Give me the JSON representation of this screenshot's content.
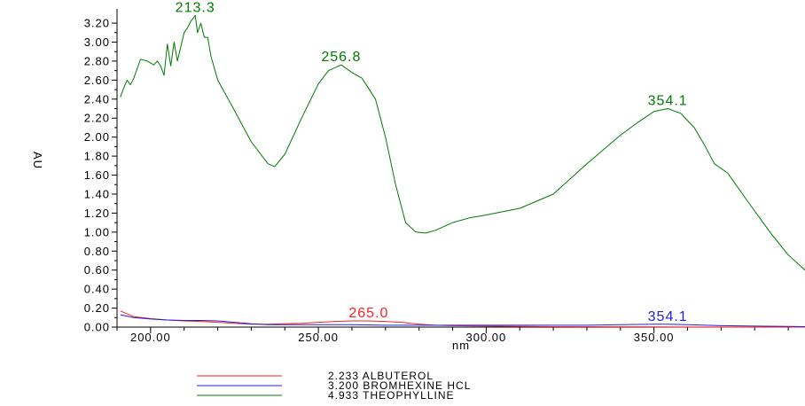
{
  "chart_data": {
    "type": "line",
    "xlabel": "nm",
    "ylabel": "AU",
    "xlim": [
      190,
      395
    ],
    "ylim": [
      0,
      3.35
    ],
    "x_ticks": [
      {
        "value": 200,
        "label": "200.00"
      },
      {
        "value": 250,
        "label": "250.00"
      },
      {
        "value": 300,
        "label": "300.00"
      },
      {
        "value": 350,
        "label": "350.00"
      }
    ],
    "y_ticks": [
      {
        "value": 0.0,
        "label": "0.00"
      },
      {
        "value": 0.2,
        "label": "0.20"
      },
      {
        "value": 0.4,
        "label": "0.40"
      },
      {
        "value": 0.6,
        "label": "0.60"
      },
      {
        "value": 0.8,
        "label": "0.80"
      },
      {
        "value": 1.0,
        "label": "1.00"
      },
      {
        "value": 1.2,
        "label": "1.20"
      },
      {
        "value": 1.4,
        "label": "1.40"
      },
      {
        "value": 1.6,
        "label": "1.60"
      },
      {
        "value": 1.8,
        "label": "1.80"
      },
      {
        "value": 2.0,
        "label": "2.00"
      },
      {
        "value": 2.2,
        "label": "2.20"
      },
      {
        "value": 2.4,
        "label": "2.40"
      },
      {
        "value": 2.6,
        "label": "2.60"
      },
      {
        "value": 2.8,
        "label": "2.80"
      },
      {
        "value": 3.0,
        "label": "3.00"
      },
      {
        "value": 3.2,
        "label": "3.20"
      }
    ],
    "series": [
      {
        "name": "2.233 ALBUTEROL",
        "color": "#ff2020",
        "points": [
          [
            191,
            0.17
          ],
          [
            195,
            0.11
          ],
          [
            200,
            0.09
          ],
          [
            205,
            0.075
          ],
          [
            210,
            0.065
          ],
          [
            215,
            0.06
          ],
          [
            220,
            0.05
          ],
          [
            225,
            0.04
          ],
          [
            230,
            0.03
          ],
          [
            235,
            0.03
          ],
          [
            240,
            0.035
          ],
          [
            245,
            0.04
          ],
          [
            250,
            0.05
          ],
          [
            255,
            0.06
          ],
          [
            260,
            0.065
          ],
          [
            265,
            0.065
          ],
          [
            270,
            0.06
          ],
          [
            275,
            0.05
          ],
          [
            280,
            0.03
          ],
          [
            285,
            0.02
          ],
          [
            290,
            0.015
          ],
          [
            300,
            0.01
          ],
          [
            320,
            0.005
          ],
          [
            350,
            0.002
          ],
          [
            395,
            0.0
          ]
        ]
      },
      {
        "name": "3.200 BROMHEXINE HCL",
        "color": "#2020e0",
        "points": [
          [
            191,
            0.13
          ],
          [
            195,
            0.1
          ],
          [
            200,
            0.085
          ],
          [
            205,
            0.075
          ],
          [
            210,
            0.07
          ],
          [
            215,
            0.07
          ],
          [
            220,
            0.065
          ],
          [
            225,
            0.05
          ],
          [
            230,
            0.035
          ],
          [
            235,
            0.025
          ],
          [
            240,
            0.025
          ],
          [
            250,
            0.025
          ],
          [
            260,
            0.025
          ],
          [
            270,
            0.02
          ],
          [
            280,
            0.02
          ],
          [
            290,
            0.02
          ],
          [
            300,
            0.02
          ],
          [
            310,
            0.02
          ],
          [
            320,
            0.02
          ],
          [
            330,
            0.02
          ],
          [
            340,
            0.025
          ],
          [
            350,
            0.03
          ],
          [
            354,
            0.03
          ],
          [
            360,
            0.025
          ],
          [
            370,
            0.015
          ],
          [
            380,
            0.01
          ],
          [
            395,
            0.005
          ]
        ]
      },
      {
        "name": "4.933 THEOPHYLLINE",
        "color": "#007a00",
        "points": [
          [
            191,
            2.42
          ],
          [
            192,
            2.52
          ],
          [
            193,
            2.6
          ],
          [
            194,
            2.55
          ],
          [
            195,
            2.62
          ],
          [
            196,
            2.72
          ],
          [
            197,
            2.82
          ],
          [
            199,
            2.8
          ],
          [
            201,
            2.76
          ],
          [
            202,
            2.8
          ],
          [
            203,
            2.75
          ],
          [
            204,
            2.65
          ],
          [
            205,
            2.98
          ],
          [
            206,
            2.75
          ],
          [
            207,
            3.0
          ],
          [
            208,
            2.8
          ],
          [
            209,
            2.95
          ],
          [
            210,
            3.1
          ],
          [
            211,
            3.15
          ],
          [
            212,
            3.22
          ],
          [
            213.3,
            3.28
          ],
          [
            214,
            3.1
          ],
          [
            215,
            3.2
          ],
          [
            216,
            3.05
          ],
          [
            217,
            3.05
          ],
          [
            218,
            2.85
          ],
          [
            220,
            2.6
          ],
          [
            225,
            2.28
          ],
          [
            230,
            1.95
          ],
          [
            235,
            1.72
          ],
          [
            237,
            1.69
          ],
          [
            240,
            1.82
          ],
          [
            245,
            2.2
          ],
          [
            250,
            2.56
          ],
          [
            253,
            2.7
          ],
          [
            256.8,
            2.76
          ],
          [
            260,
            2.68
          ],
          [
            263,
            2.62
          ],
          [
            267,
            2.4
          ],
          [
            270,
            2.0
          ],
          [
            273,
            1.5
          ],
          [
            276,
            1.1
          ],
          [
            279,
            1.0
          ],
          [
            282,
            0.99
          ],
          [
            285,
            1.02
          ],
          [
            290,
            1.1
          ],
          [
            295,
            1.15
          ],
          [
            300,
            1.18
          ],
          [
            310,
            1.25
          ],
          [
            320,
            1.4
          ],
          [
            330,
            1.72
          ],
          [
            340,
            2.02
          ],
          [
            345,
            2.15
          ],
          [
            350,
            2.27
          ],
          [
            354.1,
            2.3
          ],
          [
            358,
            2.25
          ],
          [
            362,
            2.1
          ],
          [
            365,
            1.92
          ],
          [
            368,
            1.72
          ],
          [
            372,
            1.62
          ],
          [
            378,
            1.32
          ],
          [
            385,
            0.98
          ],
          [
            390,
            0.76
          ],
          [
            395,
            0.6
          ]
        ]
      }
    ],
    "annotations": [
      {
        "label": "213.3",
        "x": 213.3,
        "y": 3.28,
        "color": "#007a00"
      },
      {
        "label": "256.8",
        "x": 256.8,
        "y": 2.76,
        "color": "#007a00"
      },
      {
        "label": "354.1",
        "x": 354.1,
        "y": 2.3,
        "color": "#007a00"
      },
      {
        "label": "265.0",
        "x": 265.0,
        "y": 0.065,
        "color": "#ff2020"
      },
      {
        "label": "354.1",
        "x": 354.1,
        "y": 0.03,
        "color": "#2020e0"
      }
    ],
    "legend_position": "bottom-center"
  }
}
